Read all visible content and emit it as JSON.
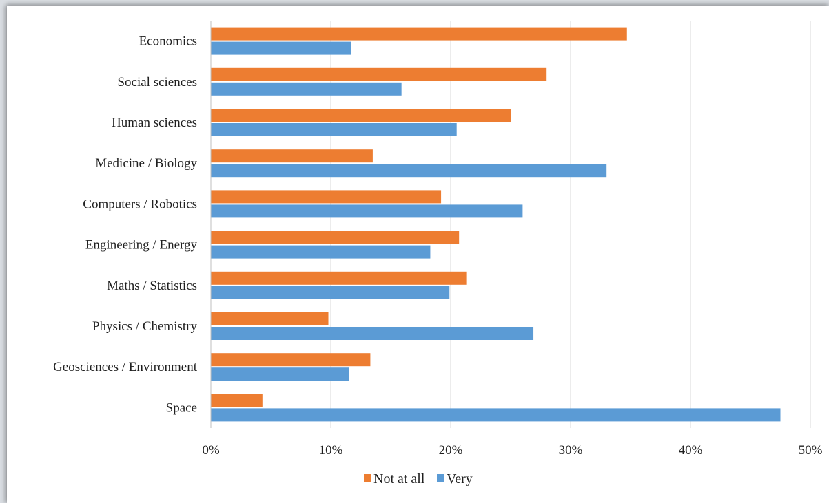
{
  "chart_data": {
    "type": "bar",
    "orientation": "horizontal",
    "categories": [
      "Economics",
      "Social sciences",
      "Human sciences",
      "Medicine / Biology",
      "Computers / Robotics",
      "Engineering / Energy",
      "Maths / Statistics",
      "Physics / Chemistry",
      "Geosciences / Environment",
      "Space"
    ],
    "series": [
      {
        "name": "Not at all",
        "color": "#ed7d31",
        "values": [
          34.7,
          28.0,
          25.0,
          13.5,
          19.2,
          20.7,
          21.3,
          9.8,
          13.3,
          4.3
        ]
      },
      {
        "name": "Very",
        "color": "#5b9bd5",
        "values": [
          11.7,
          15.9,
          20.5,
          33.0,
          26.0,
          18.3,
          19.9,
          26.9,
          11.5,
          47.5
        ]
      }
    ],
    "xlim": [
      0,
      50
    ],
    "xticks": [
      0,
      10,
      20,
      30,
      40,
      50
    ],
    "xtick_labels": [
      "0%",
      "10%",
      "20%",
      "30%",
      "40%",
      "50%"
    ],
    "title": "",
    "xlabel": "",
    "ylabel": "",
    "grid": "vertical",
    "legend_position": "bottom"
  }
}
